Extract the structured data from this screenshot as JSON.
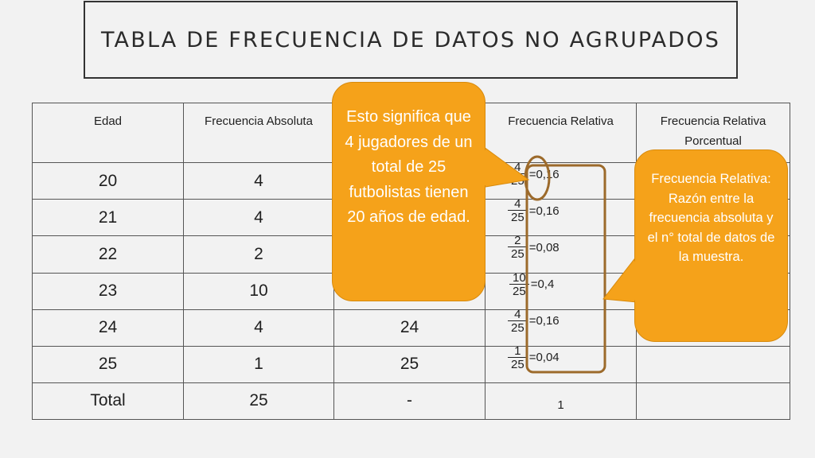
{
  "title": "TABLA DE FRECUENCIA DE DATOS NO AGRUPADOS",
  "table": {
    "headers": [
      "Edad",
      "Frecuencia Absoluta",
      "",
      "Frecuencia Relativa",
      "Frecuencia Relativa Porcentual"
    ],
    "rows": [
      {
        "edad": "20",
        "abs": "4",
        "acum": "",
        "num": "4",
        "den": "25",
        "res": "=0,16",
        "pct": ""
      },
      {
        "edad": "21",
        "abs": "4",
        "acum": "",
        "num": "4",
        "den": "25",
        "res": "=0,16",
        "pct": ""
      },
      {
        "edad": "22",
        "abs": "2",
        "acum": "",
        "num": "2",
        "den": "25",
        "res": "=0,08",
        "pct": ""
      },
      {
        "edad": "23",
        "abs": "10",
        "acum": "",
        "num": "10",
        "den": "25",
        "res": "=0,4",
        "pct": ""
      },
      {
        "edad": "24",
        "abs": "4",
        "acum": "24",
        "num": "4",
        "den": "25",
        "res": "=0,16",
        "pct": ""
      },
      {
        "edad": "25",
        "abs": "1",
        "acum": "25",
        "num": "1",
        "den": "25",
        "res": "=0,04",
        "pct": ""
      }
    ],
    "total": {
      "label": "Total",
      "abs": "25",
      "acum": "-",
      "rel": "1",
      "pct": ""
    }
  },
  "callouts": {
    "left": "Esto significa que 4 jugadores de un total de 25 futbolistas tienen 20 años de edad.",
    "right": "Frecuencia Relativa: Razón entre la frecuencia absoluta y el n° total de datos de la muestra."
  },
  "colors": {
    "callout": "#f5a21a",
    "highlight": "#9c6a2b",
    "background": "#f2f2f2"
  }
}
